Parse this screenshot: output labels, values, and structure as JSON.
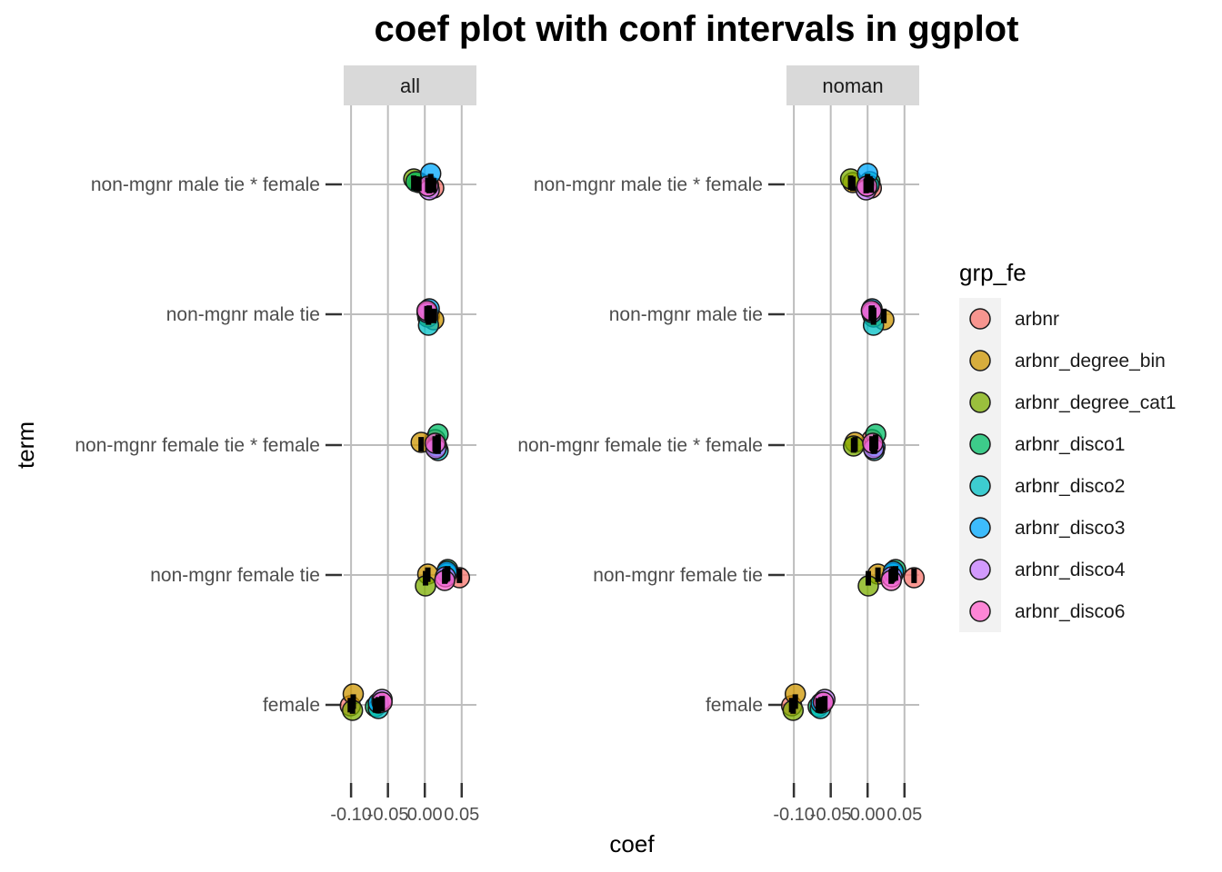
{
  "chart_data": {
    "type": "scatter",
    "title": "coef plot with conf intervals in ggplot",
    "xlabel": "coef",
    "ylabel": "term",
    "xlim": [
      -0.11,
      0.07
    ],
    "x_ticks": [
      -0.1,
      -0.05,
      0.0,
      0.05
    ],
    "x_tick_labels": [
      "-0.10",
      "-0.05",
      "0.00",
      "0.05"
    ],
    "terms": [
      "non-mgnr male tie * female",
      "non-mgnr male tie",
      "non-mgnr female tie * female",
      "non-mgnr female tie",
      "female"
    ],
    "facets": [
      "all",
      "noman"
    ],
    "grid": true,
    "legend": {
      "title": "grp_fe",
      "placement": "right",
      "entries": [
        "arbnr",
        "arbnr_degree_bin",
        "arbnr_degree_cat1",
        "arbnr_disco1",
        "arbnr_disco2",
        "arbnr_disco3",
        "arbnr_disco4",
        "arbnr_disco6"
      ]
    },
    "colors": {
      "arbnr": "#F8766D",
      "arbnr_degree_bin": "#CD9600",
      "arbnr_degree_cat1": "#7CAE00",
      "arbnr_disco1": "#00BE67",
      "arbnr_disco2": "#00BFC4",
      "arbnr_disco3": "#00A9FF",
      "arbnr_disco4": "#C77CFF",
      "arbnr_disco6": "#FF61CC"
    },
    "series": [
      {
        "facet": "all",
        "points": {
          "non-mgnr male tie * female": [
            0.012,
            -0.008,
            -0.015,
            -0.012,
            0.005,
            0.008,
            0.006,
            0.004
          ],
          "non-mgnr male tie": [
            0.006,
            0.012,
            0.004,
            0.004,
            0.005,
            0.006,
            0.003,
            0.003
          ],
          "non-mgnr female tie * female": [
            0.014,
            -0.005,
            0.016,
            0.018,
            0.018,
            0.016,
            0.015,
            0.014
          ],
          "non-mgnr female tie": [
            0.047,
            0.004,
            0.001,
            0.031,
            0.03,
            0.03,
            0.028,
            0.027
          ],
          "female": [
            -0.101,
            -0.097,
            -0.098,
            -0.067,
            -0.063,
            -0.063,
            -0.058,
            -0.058
          ]
        }
      },
      {
        "facet": "noman",
        "points": {
          "non-mgnr male tie * female": [
            0.005,
            -0.02,
            -0.023,
            0.003,
            0.002,
            0.0,
            -0.002,
            -0.001
          ],
          "non-mgnr male tie": [
            0.008,
            0.022,
            0.008,
            0.006,
            0.008,
            0.006,
            0.006,
            0.005
          ],
          "non-mgnr female tie * female": [
            0.006,
            -0.017,
            -0.019,
            0.011,
            0.009,
            0.01,
            0.008,
            0.007
          ],
          "non-mgnr female tie": [
            0.063,
            0.014,
            0.001,
            0.038,
            0.035,
            0.035,
            0.033,
            0.032
          ],
          "female": [
            -0.103,
            -0.098,
            -0.101,
            -0.067,
            -0.064,
            -0.063,
            -0.058,
            -0.06
          ]
        }
      }
    ]
  }
}
